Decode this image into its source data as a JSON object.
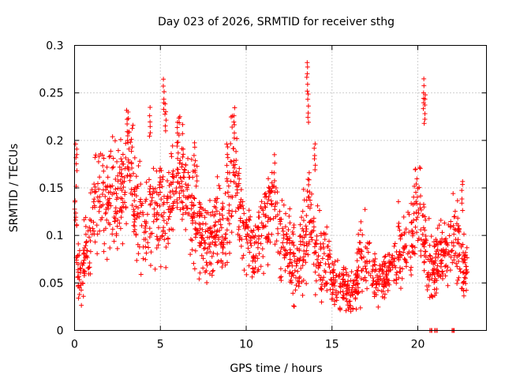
{
  "chart_data": {
    "type": "scatter",
    "title": "Day 023 of 2026, SRMTID for receiver sthg",
    "xlabel": "GPS time / hours",
    "ylabel": "SRMTID / TECUs",
    "xlim": [
      0,
      24
    ],
    "ylim": [
      0,
      0.3
    ],
    "x_ticks": [
      0,
      5,
      10,
      15,
      20
    ],
    "y_ticks": [
      0,
      0.05,
      0.1,
      0.15,
      0.2,
      0.25,
      0.3
    ],
    "x_tick_labels": [
      "0",
      "5",
      "10",
      "15",
      "20"
    ],
    "y_tick_labels": [
      "0",
      "0.05",
      "0.1",
      "0.15",
      "0.2",
      "0.25",
      "0.3"
    ],
    "grid": true,
    "marker": "plus",
    "series": [
      {
        "name": "SRMTID",
        "color": "#ff0000",
        "trend": {
          "x": [
            0.0,
            0.1,
            0.2,
            0.4,
            0.6,
            0.8,
            1.0,
            1.3,
            1.6,
            2.0,
            2.3,
            2.6,
            2.9,
            3.2,
            3.5,
            3.8,
            4.1,
            4.4,
            4.7,
            5.0,
            5.3,
            5.6,
            5.9,
            6.2,
            6.5,
            6.8,
            7.1,
            7.4,
            7.7,
            8.0,
            8.3,
            8.6,
            8.9,
            9.2,
            9.5,
            9.8,
            10.1,
            10.4,
            10.7,
            11.0,
            11.3,
            11.6,
            11.9,
            12.2,
            12.5,
            12.8,
            13.1,
            13.4,
            13.7,
            14.0,
            14.3,
            14.6,
            14.9,
            15.2,
            15.5,
            15.8,
            16.1,
            16.4,
            16.7,
            17.0,
            17.3,
            17.6,
            17.9,
            18.2,
            18.5,
            18.8,
            19.1,
            19.4,
            19.7,
            20.0,
            20.2,
            20.5,
            20.8,
            21.1,
            21.4,
            21.7,
            22.0,
            22.3,
            22.6,
            22.9
          ],
          "y": [
            0.15,
            0.12,
            0.06,
            0.05,
            0.08,
            0.09,
            0.12,
            0.13,
            0.14,
            0.13,
            0.15,
            0.14,
            0.16,
            0.18,
            0.14,
            0.12,
            0.11,
            0.13,
            0.12,
            0.13,
            0.11,
            0.15,
            0.16,
            0.17,
            0.16,
            0.13,
            0.12,
            0.1,
            0.08,
            0.09,
            0.12,
            0.1,
            0.12,
            0.17,
            0.14,
            0.12,
            0.1,
            0.08,
            0.09,
            0.11,
            0.12,
            0.14,
            0.11,
            0.09,
            0.08,
            0.07,
            0.08,
            0.1,
            0.12,
            0.09,
            0.08,
            0.07,
            0.06,
            0.05,
            0.045,
            0.04,
            0.035,
            0.05,
            0.07,
            0.08,
            0.06,
            0.06,
            0.055,
            0.065,
            0.07,
            0.08,
            0.09,
            0.085,
            0.1,
            0.14,
            0.12,
            0.08,
            0.06,
            0.07,
            0.09,
            0.08,
            0.1,
            0.09,
            0.07,
            0.06
          ],
          "spread": [
            0.04,
            0.05,
            0.03,
            0.02,
            0.03,
            0.03,
            0.04,
            0.04,
            0.04,
            0.04,
            0.04,
            0.04,
            0.04,
            0.04,
            0.04,
            0.04,
            0.04,
            0.04,
            0.04,
            0.04,
            0.04,
            0.04,
            0.04,
            0.04,
            0.04,
            0.04,
            0.04,
            0.04,
            0.03,
            0.03,
            0.04,
            0.04,
            0.04,
            0.05,
            0.04,
            0.04,
            0.03,
            0.03,
            0.03,
            0.04,
            0.04,
            0.04,
            0.04,
            0.03,
            0.03,
            0.03,
            0.03,
            0.04,
            0.04,
            0.03,
            0.03,
            0.03,
            0.02,
            0.02,
            0.02,
            0.02,
            0.02,
            0.02,
            0.03,
            0.03,
            0.02,
            0.02,
            0.02,
            0.02,
            0.02,
            0.03,
            0.03,
            0.03,
            0.03,
            0.04,
            0.04,
            0.03,
            0.03,
            0.03,
            0.03,
            0.03,
            0.03,
            0.03,
            0.03,
            0.02
          ]
        },
        "n_generated_points": 1800,
        "peaks": [
          {
            "x": 0.1,
            "y": 0.2
          },
          {
            "x": 3.1,
            "y": 0.23
          },
          {
            "x": 4.4,
            "y": 0.235
          },
          {
            "x": 5.2,
            "y": 0.265
          },
          {
            "x": 5.3,
            "y": 0.24
          },
          {
            "x": 6.0,
            "y": 0.22
          },
          {
            "x": 7.0,
            "y": 0.2
          },
          {
            "x": 8.9,
            "y": 0.2
          },
          {
            "x": 9.3,
            "y": 0.235
          },
          {
            "x": 13.55,
            "y": 0.285
          },
          {
            "x": 13.6,
            "y": 0.25
          },
          {
            "x": 14.0,
            "y": 0.2
          },
          {
            "x": 20.35,
            "y": 0.265
          },
          {
            "x": 20.4,
            "y": 0.25
          },
          {
            "x": 22.6,
            "y": 0.16
          }
        ],
        "zero_points": [
          {
            "x": 20.7,
            "y": 0
          },
          {
            "x": 20.8,
            "y": 0
          },
          {
            "x": 21.0,
            "y": 0
          },
          {
            "x": 21.1,
            "y": 0
          },
          {
            "x": 22.0,
            "y": 0
          },
          {
            "x": 22.1,
            "y": 0
          }
        ]
      }
    ]
  }
}
